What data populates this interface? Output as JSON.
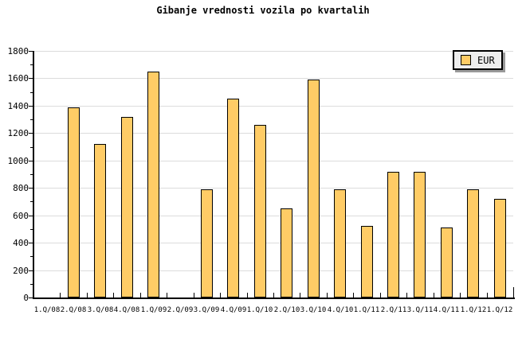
{
  "chart_data": {
    "type": "bar",
    "title": "Gibanje vrednosti vozila po kvartalih",
    "categories": [
      "1.Q/08",
      "2.Q/08",
      "3.Q/08",
      "4.Q/08",
      "1.Q/09",
      "2.Q/09",
      "3.Q/09",
      "4.Q/09",
      "1.Q/10",
      "2.Q/10",
      "3.Q/10",
      "4.Q/10",
      "1.Q/11",
      "2.Q/11",
      "3.Q/11",
      "4.Q/11",
      "1.Q/12",
      "1.Q/12"
    ],
    "series": [
      {
        "name": "EUR",
        "values": [
          0,
          1390,
          1120,
          1320,
          1650,
          0,
          790,
          1450,
          1260,
          650,
          1590,
          790,
          520,
          920,
          920,
          510,
          790,
          720
        ]
      }
    ],
    "xlabel": "",
    "ylabel": "",
    "ylim": [
      0,
      1800
    ],
    "y_tick_labels": [
      "0",
      "200",
      "400",
      "600",
      "800",
      "1000",
      "1200",
      "1400",
      "1600",
      "1800"
    ],
    "y_tick_step": 200,
    "y_minor_tick_step": 100,
    "grid": "horizontal-major",
    "legend": {
      "label": "EUR",
      "position": "top-right"
    },
    "colors": {
      "background": "#ffffff",
      "bar_fill": "#ffcc66",
      "bar_border": "#000000",
      "grid": "#dcdcdc",
      "axis": "#000000",
      "text": "#000000",
      "legend_bg": "#eeeeee",
      "legend_shadow": "#999999"
    }
  }
}
